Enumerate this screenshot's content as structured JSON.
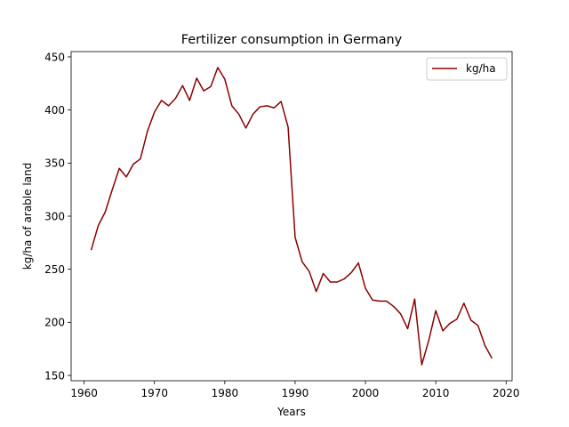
{
  "chart_data": {
    "type": "line",
    "title": "Fertilizer consumption in Germany",
    "xlabel": "Years",
    "ylabel": "kg/ha of arable land",
    "xlim": [
      1958.15,
      2020.85
    ],
    "ylim": [
      145,
      455
    ],
    "xticks": [
      1960,
      1970,
      1980,
      1990,
      2000,
      2010,
      2020
    ],
    "yticks": [
      150,
      200,
      250,
      300,
      350,
      400,
      450
    ],
    "grid": false,
    "legend": "top-right",
    "series": [
      {
        "name": "kg/ha",
        "color": "#8b0000",
        "x": [
          1961,
          1962,
          1963,
          1964,
          1965,
          1966,
          1967,
          1968,
          1969,
          1970,
          1971,
          1972,
          1973,
          1974,
          1975,
          1976,
          1977,
          1978,
          1979,
          1980,
          1981,
          1982,
          1983,
          1984,
          1985,
          1986,
          1987,
          1988,
          1989,
          1990,
          1991,
          1992,
          1993,
          1994,
          1995,
          1996,
          1997,
          1998,
          1999,
          2000,
          2001,
          2002,
          2003,
          2004,
          2005,
          2006,
          2007,
          2008,
          2009,
          2010,
          2011,
          2012,
          2013,
          2014,
          2015,
          2016,
          2017,
          2018
        ],
        "y": [
          268,
          291,
          304,
          325,
          345,
          337,
          349,
          354,
          380,
          398,
          409,
          404,
          411,
          423,
          409,
          430,
          418,
          422,
          440,
          429,
          404,
          396,
          383,
          396,
          403,
          404,
          402,
          408,
          384,
          280,
          257,
          248,
          229,
          246,
          238,
          238,
          241,
          247,
          256,
          232,
          221,
          220,
          220,
          215,
          208,
          194,
          222,
          160,
          183,
          211,
          192,
          199,
          203,
          218,
          202,
          197,
          178,
          166
        ]
      }
    ]
  }
}
